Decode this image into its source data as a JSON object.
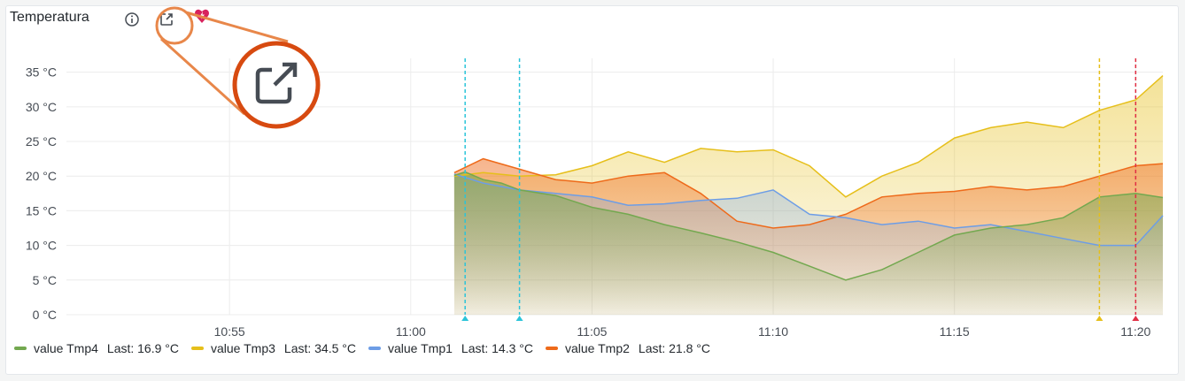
{
  "panel": {
    "title": "Temperatura"
  },
  "icons": {
    "info": "info-circle-icon",
    "share": "external-link-icon",
    "alert": "heart-bolt-alert-icon",
    "zoom": "external-link-icon"
  },
  "legend": [
    {
      "name": "value Tmp4",
      "last": "Last: 16.9 °C",
      "color": "#73a84f"
    },
    {
      "name": "value Tmp3",
      "last": "Last: 34.5 °C",
      "color": "#e6bf1a"
    },
    {
      "name": "value Tmp1",
      "last": "Last: 14.3 °C",
      "color": "#6d9de6"
    },
    {
      "name": "value Tmp2",
      "last": "Last: 21.8 °C",
      "color": "#ee6a1a"
    }
  ],
  "chart_data": {
    "type": "area",
    "x_ticks": [
      "10:55",
      "11:00",
      "11:05",
      "11:10",
      "11:15",
      "11:20"
    ],
    "y_ticks": [
      "0 °C",
      "5 °C",
      "10 °C",
      "15 °C",
      "20 °C",
      "25 °C",
      "30 °C",
      "35 °C"
    ],
    "ylim": [
      0,
      37
    ],
    "xlim": [
      "10:50:30",
      "11:20:45"
    ],
    "grid": true,
    "legend_position": "bottom",
    "annotations": [
      {
        "time": "11:01:30",
        "color": "#2bc4d9"
      },
      {
        "time": "11:03:00",
        "color": "#2bc4d9"
      },
      {
        "time": "11:19:00",
        "color": "#e6bf1a"
      },
      {
        "time": "11:20:00",
        "color": "#e02f44"
      }
    ],
    "series": [
      {
        "name": "value Tmp4",
        "unit": "°C",
        "color": "#73a84f",
        "points": [
          [
            "11:01:12",
            20.1
          ],
          [
            "11:01:30",
            20.6
          ],
          [
            "11:02:00",
            19.5
          ],
          [
            "11:02:30",
            19.0
          ],
          [
            "11:03:00",
            18.0
          ],
          [
            "11:04:00",
            17.2
          ],
          [
            "11:05:00",
            15.5
          ],
          [
            "11:06:00",
            14.5
          ],
          [
            "11:07:00",
            13.0
          ],
          [
            "11:08:00",
            11.8
          ],
          [
            "11:09:00",
            10.5
          ],
          [
            "11:10:00",
            9.0
          ],
          [
            "11:11:00",
            7.0
          ],
          [
            "11:12:00",
            5.0
          ],
          [
            "11:13:00",
            6.5
          ],
          [
            "11:14:00",
            9.0
          ],
          [
            "11:15:00",
            11.5
          ],
          [
            "11:16:00",
            12.5
          ],
          [
            "11:17:00",
            13.0
          ],
          [
            "11:18:00",
            14.0
          ],
          [
            "11:19:00",
            17.0
          ],
          [
            "11:20:00",
            17.5
          ],
          [
            "11:20:45",
            16.9
          ]
        ]
      },
      {
        "name": "value Tmp3",
        "unit": "°C",
        "color": "#e6bf1a",
        "points": [
          [
            "11:01:12",
            20.0
          ],
          [
            "11:02:00",
            20.5
          ],
          [
            "11:03:00",
            20.0
          ],
          [
            "11:04:00",
            20.2
          ],
          [
            "11:05:00",
            21.5
          ],
          [
            "11:06:00",
            23.5
          ],
          [
            "11:07:00",
            22.0
          ],
          [
            "11:08:00",
            24.0
          ],
          [
            "11:09:00",
            23.5
          ],
          [
            "11:10:00",
            23.8
          ],
          [
            "11:11:00",
            21.5
          ],
          [
            "11:12:00",
            17.0
          ],
          [
            "11:13:00",
            20.0
          ],
          [
            "11:14:00",
            22.0
          ],
          [
            "11:15:00",
            25.5
          ],
          [
            "11:16:00",
            27.0
          ],
          [
            "11:17:00",
            27.8
          ],
          [
            "11:18:00",
            27.0
          ],
          [
            "11:19:00",
            29.5
          ],
          [
            "11:20:00",
            31.0
          ],
          [
            "11:20:45",
            34.5
          ]
        ]
      },
      {
        "name": "value Tmp1",
        "unit": "°C",
        "color": "#6d9de6",
        "points": [
          [
            "11:01:12",
            20.3
          ],
          [
            "11:02:00",
            19.0
          ],
          [
            "11:03:00",
            18.0
          ],
          [
            "11:04:00",
            17.5
          ],
          [
            "11:05:00",
            17.0
          ],
          [
            "11:06:00",
            15.8
          ],
          [
            "11:07:00",
            16.0
          ],
          [
            "11:08:00",
            16.5
          ],
          [
            "11:09:00",
            16.8
          ],
          [
            "11:10:00",
            18.0
          ],
          [
            "11:11:00",
            14.5
          ],
          [
            "11:12:00",
            14.0
          ],
          [
            "11:13:00",
            13.0
          ],
          [
            "11:14:00",
            13.5
          ],
          [
            "11:15:00",
            12.5
          ],
          [
            "11:16:00",
            13.0
          ],
          [
            "11:17:00",
            12.0
          ],
          [
            "11:18:00",
            11.0
          ],
          [
            "11:19:00",
            10.0
          ],
          [
            "11:20:00",
            10.0
          ],
          [
            "11:20:45",
            14.3
          ]
        ]
      },
      {
        "name": "value Tmp2",
        "unit": "°C",
        "color": "#ee6a1a",
        "points": [
          [
            "11:01:12",
            20.5
          ],
          [
            "11:02:00",
            22.5
          ],
          [
            "11:03:00",
            21.0
          ],
          [
            "11:04:00",
            19.5
          ],
          [
            "11:05:00",
            19.0
          ],
          [
            "11:06:00",
            20.0
          ],
          [
            "11:07:00",
            20.5
          ],
          [
            "11:08:00",
            17.5
          ],
          [
            "11:09:00",
            13.5
          ],
          [
            "11:10:00",
            12.5
          ],
          [
            "11:11:00",
            13.0
          ],
          [
            "11:12:00",
            14.5
          ],
          [
            "11:13:00",
            17.0
          ],
          [
            "11:14:00",
            17.5
          ],
          [
            "11:15:00",
            17.8
          ],
          [
            "11:16:00",
            18.5
          ],
          [
            "11:17:00",
            18.0
          ],
          [
            "11:18:00",
            18.5
          ],
          [
            "11:19:00",
            20.0
          ],
          [
            "11:20:00",
            21.5
          ],
          [
            "11:20:45",
            21.8
          ]
        ]
      }
    ]
  }
}
